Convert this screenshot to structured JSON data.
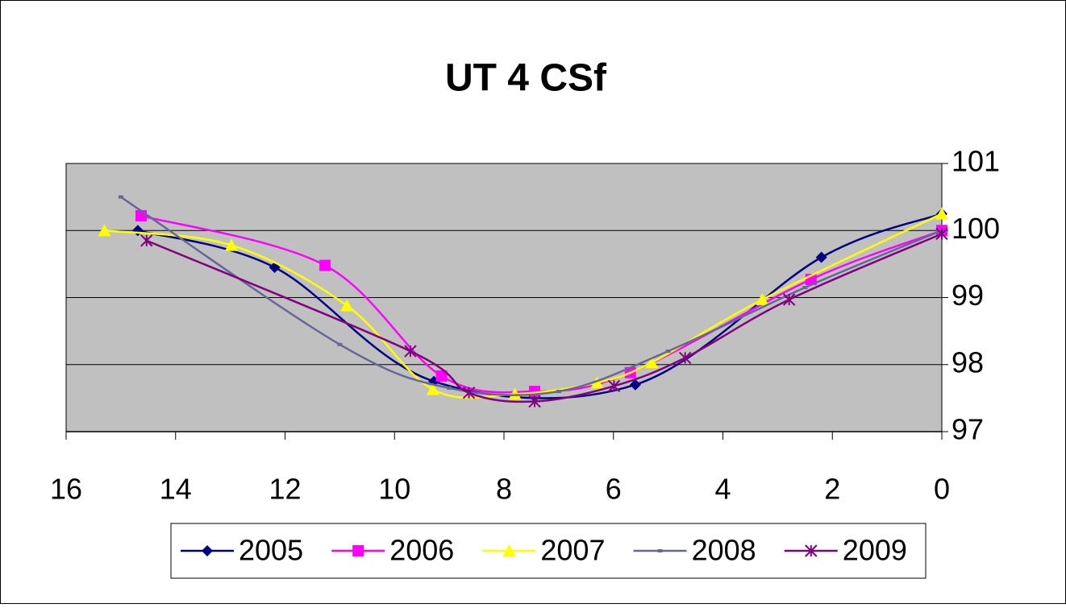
{
  "chart_data": {
    "type": "line",
    "title": "UT 4 CSf",
    "xlim": [
      16,
      0
    ],
    "xticks": [
      16,
      14,
      12,
      10,
      8,
      6,
      4,
      2,
      0
    ],
    "ylim": [
      97,
      101
    ],
    "yticks": [
      97,
      98,
      99,
      100,
      101
    ],
    "y_axis_side": "right",
    "grid": true,
    "smooth": true,
    "plot_background": "#c0c0c0",
    "legend_position": "bottom",
    "series": [
      {
        "name": "2005",
        "color": "#000080",
        "marker": "diamond",
        "x": [
          14.69,
          12.19,
          9.28,
          5.6,
          2.2,
          0
        ],
        "values": [
          100.0,
          99.45,
          97.75,
          97.7,
          99.6,
          100.25
        ]
      },
      {
        "name": "2006",
        "color": "#ff00ff",
        "marker": "square",
        "x": [
          14.63,
          11.27,
          9.14,
          7.44,
          5.69,
          2.39,
          0
        ],
        "values": [
          100.22,
          99.48,
          97.83,
          97.6,
          97.88,
          99.27,
          100.0
        ]
      },
      {
        "name": "2007",
        "color": "#ffff00",
        "marker": "triangle",
        "x": [
          15.3,
          12.98,
          10.87,
          9.3,
          7.8,
          6.3,
          5.3,
          3.28,
          0
        ],
        "values": [
          100.0,
          99.78,
          98.88,
          97.63,
          97.56,
          97.73,
          98.03,
          98.97,
          100.25
        ]
      },
      {
        "name": "2008",
        "color": "#666699",
        "marker": "dash",
        "x": [
          15.0,
          11.0,
          9.0,
          7.0,
          5.0,
          2.5,
          0
        ],
        "values": [
          100.5,
          98.3,
          97.65,
          97.6,
          98.2,
          99.15,
          100.0
        ]
      },
      {
        "name": "2009",
        "color": "#800080",
        "marker": "star",
        "x": [
          14.53,
          9.71,
          8.64,
          7.44,
          5.99,
          4.69,
          2.79,
          0
        ],
        "values": [
          99.85,
          98.2,
          97.58,
          97.45,
          97.68,
          98.1,
          98.97,
          99.95
        ]
      }
    ]
  }
}
